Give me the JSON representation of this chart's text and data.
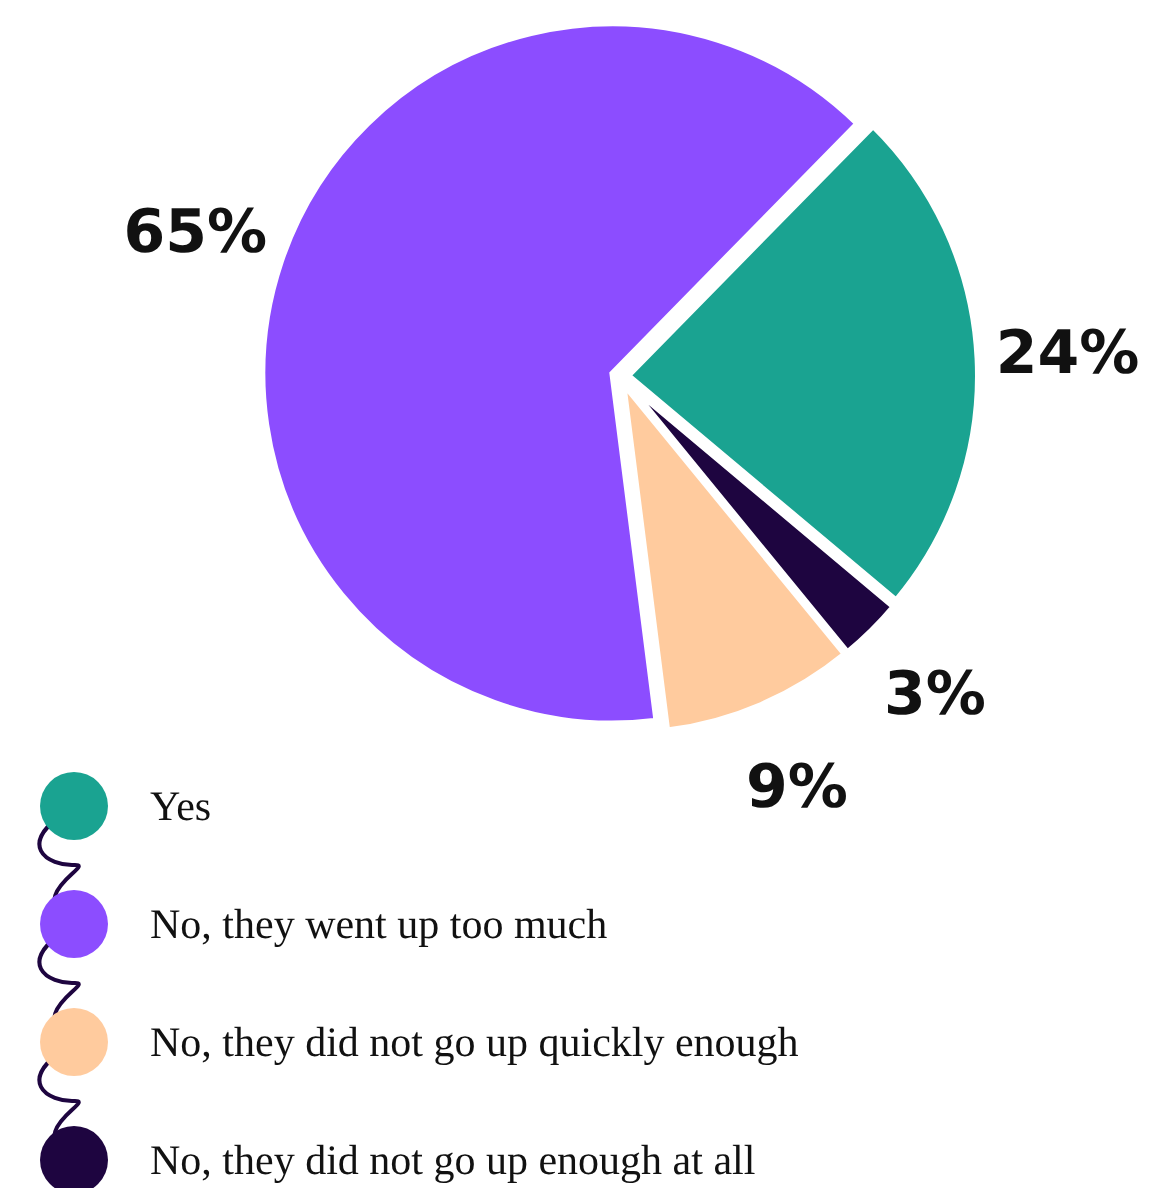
{
  "chart_data": {
    "type": "pie",
    "categories": [
      "Yes",
      "No, they went up too much",
      "No, they did not go up quickly enough",
      "No, they did not go up enough at all"
    ],
    "values": [
      24,
      65,
      9,
      3
    ],
    "colors": [
      "#1aa391",
      "#8c4dff",
      "#ffcb9e",
      "#1e0540"
    ],
    "value_labels": [
      "24%",
      "65%",
      "9%",
      "3%"
    ],
    "legend": "bottom"
  }
}
